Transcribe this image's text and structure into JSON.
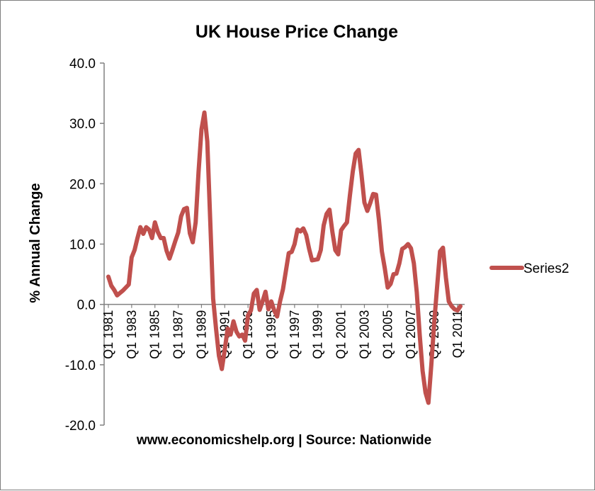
{
  "chart_data": {
    "type": "line",
    "title": "UK House Price Change",
    "xlabel": "www.economicshelp.org | Source: Nationwide",
    "ylabel": "% Annual Change",
    "ylim": [
      -20,
      40
    ],
    "ytick_step": 10,
    "ytick_labels": [
      "-20.0",
      "-10.0",
      "0.0",
      "10.0",
      "20.0",
      "30.0",
      "40.0"
    ],
    "x_start": "Q1 1981",
    "x_end": "Q4 2011",
    "xtick_labels": [
      "Q1 1981",
      "Q1 1983",
      "Q1 1985",
      "Q1 1987",
      "Q1 1989",
      "Q1 1991",
      "Q1 1993",
      "Q1 1995",
      "Q1 1997",
      "Q1 1999",
      "Q1 2001",
      "Q1 2003",
      "Q1 2005",
      "Q1 2007",
      "Q1 2009",
      "Q1 2011"
    ],
    "grid": false,
    "legend_position": "right",
    "series_color": "#c0504d",
    "series": [
      {
        "name": "Series2",
        "values": [
          4.6,
          3.1,
          2.4,
          1.5,
          1.9,
          2.3,
          2.8,
          3.3,
          7.8,
          9.0,
          11.0,
          12.8,
          11.7,
          12.8,
          12.4,
          11.0,
          13.6,
          12.0,
          11.0,
          11.0,
          8.9,
          7.6,
          9.0,
          10.5,
          11.9,
          14.6,
          15.8,
          16.0,
          11.8,
          10.3,
          13.6,
          22.0,
          29.0,
          31.8,
          27.0,
          14.0,
          1.0,
          -4.0,
          -8.5,
          -10.7,
          -7.5,
          -4.0,
          -5.0,
          -2.8,
          -4.5,
          -5.3,
          -5.0,
          -6.0,
          -1.8,
          -1.0,
          1.8,
          2.4,
          -0.9,
          0.5,
          2.1,
          -0.8,
          0.5,
          -1.0,
          -2.0,
          0.5,
          2.5,
          5.5,
          8.5,
          8.7,
          10.0,
          12.4,
          12.1,
          12.6,
          11.5,
          9.2,
          7.3,
          7.4,
          7.5,
          9.0,
          13.1,
          15.0,
          15.7,
          12.0,
          9.0,
          8.3,
          12.3,
          13.0,
          13.6,
          18.0,
          22.0,
          25.0,
          25.6,
          21.5,
          16.9,
          15.5,
          16.8,
          18.3,
          18.2,
          14.0,
          8.8,
          6.0,
          2.8,
          3.4,
          5.0,
          5.1,
          6.8,
          9.2,
          9.5,
          10.0,
          9.3,
          6.8,
          2.0,
          -5.0,
          -11.0,
          -14.6,
          -16.3,
          -10.0,
          -3.0,
          3.0,
          8.8,
          9.4,
          4.5,
          0.5,
          -0.3,
          -0.8,
          -1.0,
          -0.3
        ]
      }
    ]
  }
}
